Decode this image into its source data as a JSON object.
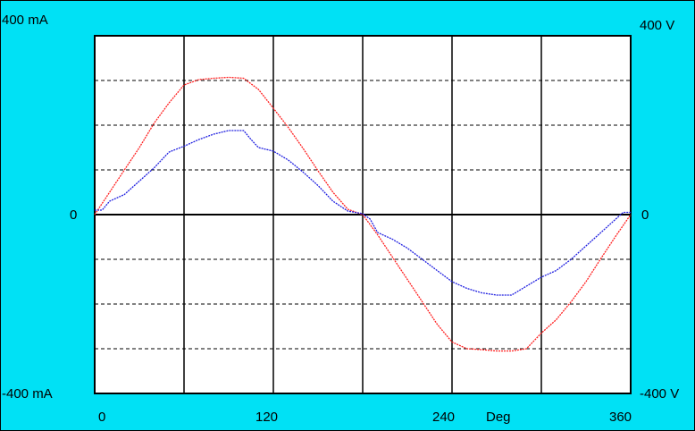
{
  "labels": {
    "left_top": "400 mA",
    "left_zero": "0",
    "left_bottom": "-400 mA",
    "right_top": "400 V",
    "right_zero": "0",
    "right_bottom": "-400 V",
    "x_unit": "Deg",
    "x_ticks": [
      "0",
      "120",
      "240",
      "360"
    ]
  },
  "chart_data": {
    "type": "line",
    "x_unit_label": "Deg",
    "xlim": [
      0,
      360
    ],
    "x_ticks": [
      0,
      120,
      240,
      360
    ],
    "y_left": {
      "label_top": "400 mA",
      "label_bottom": "-400 mA",
      "lim": [
        -400,
        400
      ],
      "unit": "mA"
    },
    "y_right": {
      "label_top": "400 V",
      "label_bottom": "-400 V",
      "lim": [
        -400,
        400
      ],
      "unit": "V"
    },
    "grid": {
      "vertical_lines": [
        60,
        120,
        180,
        240,
        300
      ],
      "horizontal_dashed": [
        -300,
        -200,
        -100,
        100,
        200,
        300
      ],
      "zero_line": true
    },
    "colors": {
      "background": "#00e1f5",
      "plot_area": "#ffffff",
      "voltage": "#ff2020",
      "current": "#2020e0"
    },
    "series": [
      {
        "color": "#ff2020",
        "axis": "right",
        "x": [
          0,
          10,
          20,
          30,
          40,
          50,
          60,
          70,
          80,
          90,
          100,
          110,
          120,
          130,
          140,
          150,
          160,
          170,
          180,
          190,
          200,
          210,
          220,
          230,
          240,
          250,
          260,
          270,
          280,
          290,
          300,
          310,
          320,
          330,
          340,
          350,
          360
        ],
        "values": [
          0,
          50,
          100,
          150,
          205,
          250,
          290,
          302,
          305,
          307,
          305,
          280,
          238,
          195,
          148,
          98,
          50,
          12,
          0,
          -45,
          -95,
          -145,
          -195,
          -245,
          -285,
          -300,
          -302,
          -305,
          -305,
          -300,
          -265,
          -235,
          -195,
          -150,
          -98,
          -48,
          0
        ]
      },
      {
        "color": "#2020e0",
        "axis": "left",
        "x": [
          0,
          5,
          10,
          20,
          30,
          40,
          50,
          60,
          70,
          80,
          90,
          100,
          105,
          110,
          120,
          130,
          140,
          150,
          160,
          170,
          180,
          185,
          190,
          200,
          210,
          220,
          230,
          240,
          250,
          260,
          270,
          280,
          290,
          300,
          310,
          320,
          330,
          340,
          350,
          355,
          360
        ],
        "values": [
          10,
          10,
          30,
          45,
          75,
          105,
          140,
          153,
          168,
          180,
          188,
          188,
          168,
          150,
          142,
          122,
          95,
          65,
          30,
          8,
          2,
          -10,
          -40,
          -55,
          -75,
          -100,
          -125,
          -150,
          -165,
          -175,
          -180,
          -180,
          -160,
          -140,
          -125,
          -100,
          -70,
          -40,
          -10,
          5,
          5
        ]
      }
    ]
  }
}
